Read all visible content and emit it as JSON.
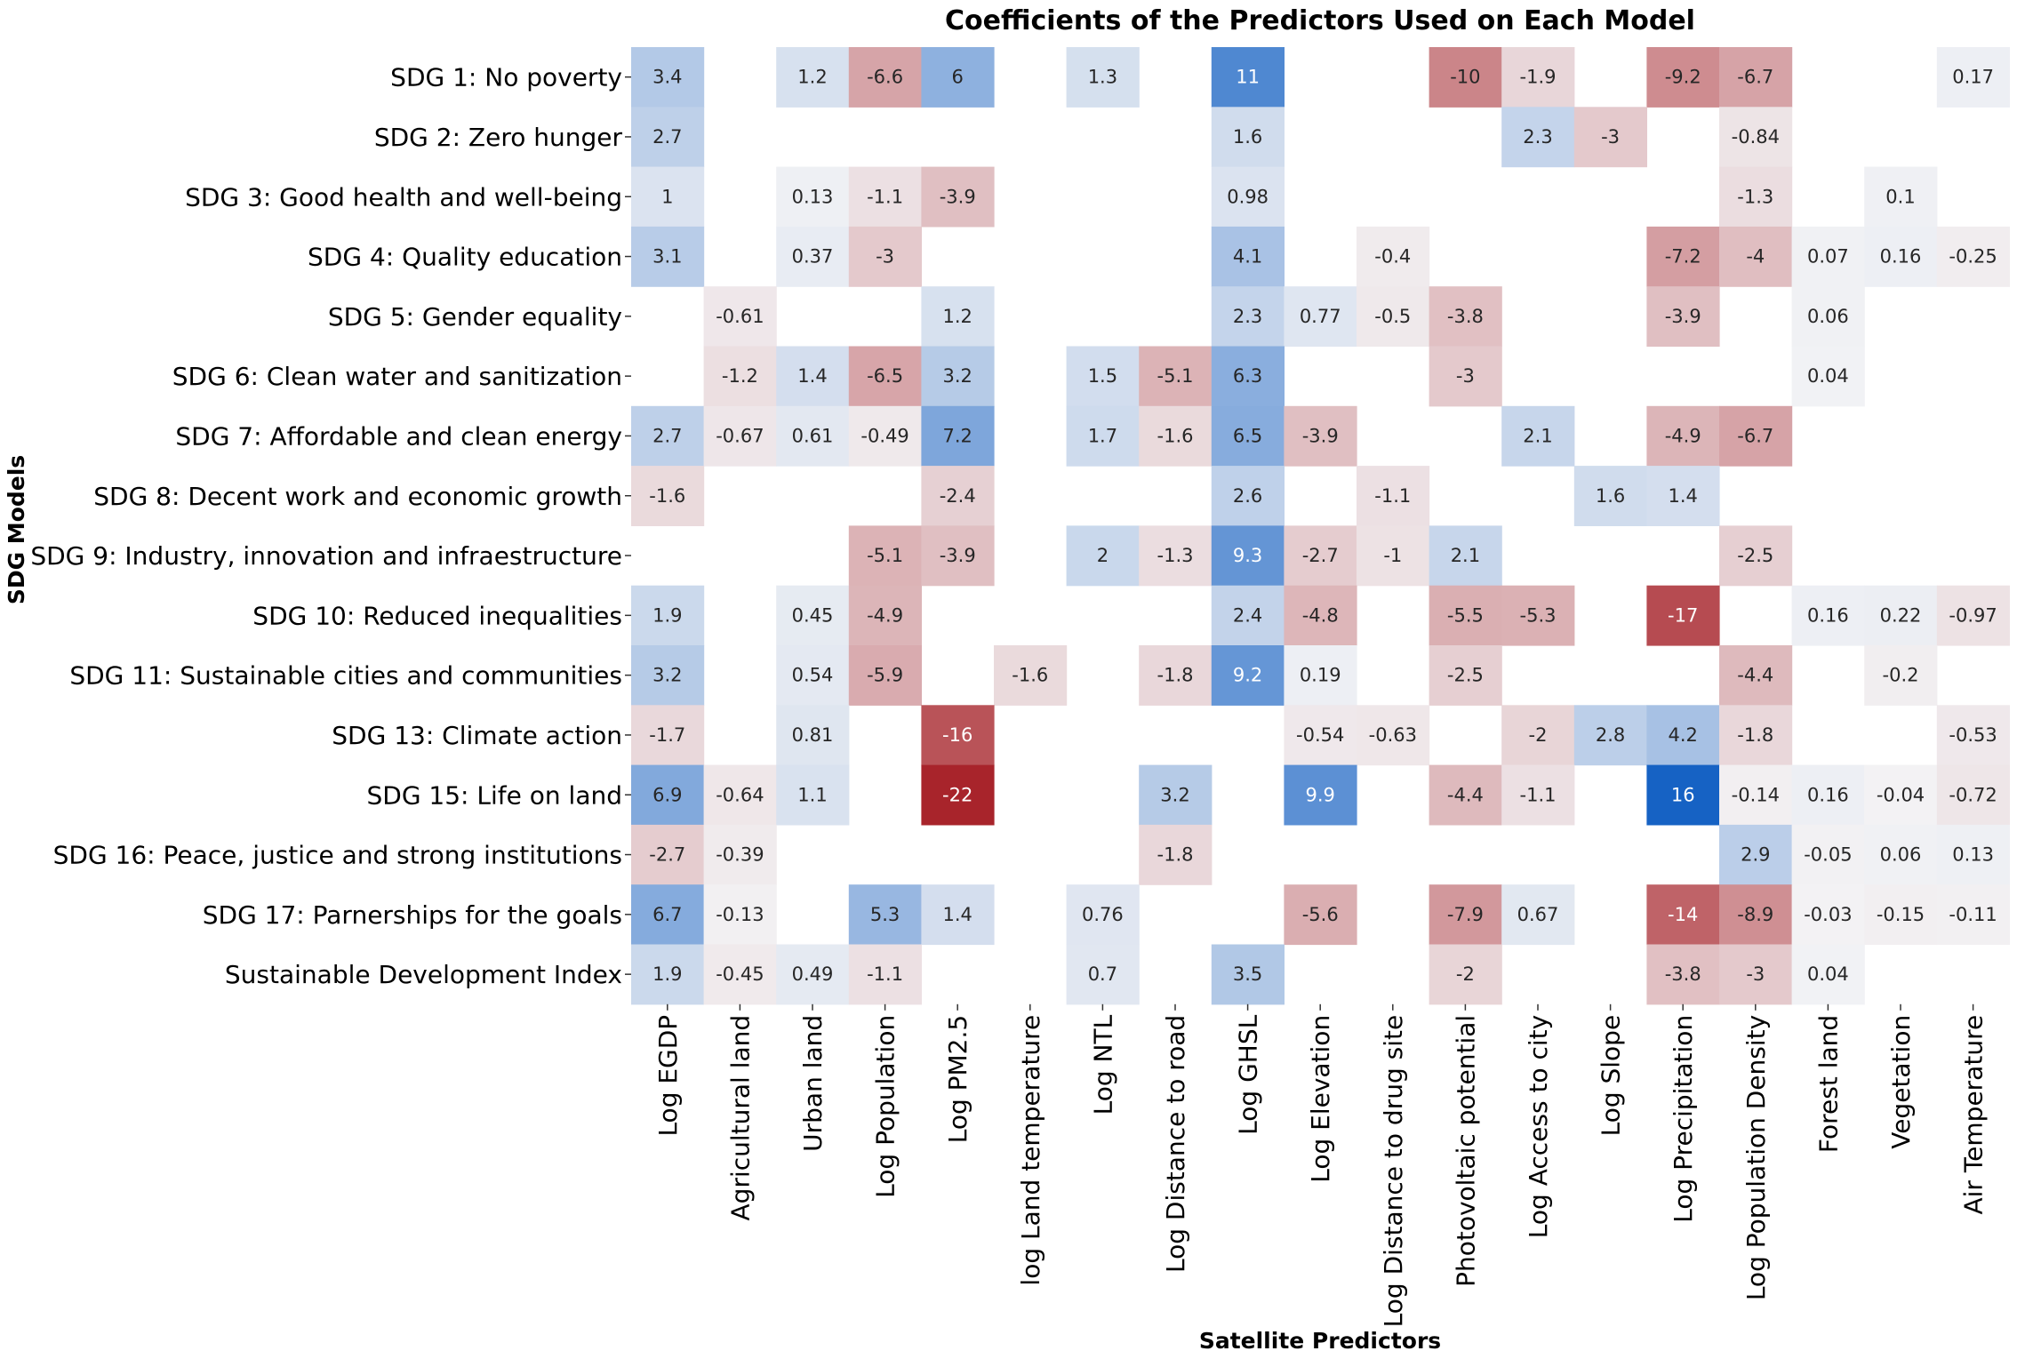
{
  "chart_data": {
    "type": "heatmap",
    "title": "Coefficients of the Predictors Used on Each Model",
    "xlabel": "Satellite Predictors",
    "ylabel": "SDG Models",
    "color_scale": {
      "min": -22,
      "max": 16,
      "negative": "#a8242b",
      "neutral": "#f3f3f5",
      "positive": "#1662c4"
    },
    "columns": [
      "Log EGDP",
      "Agricultural land",
      "Urban land",
      "Log Population",
      "Log PM2.5",
      "log Land temperature",
      "Log NTL",
      "Log Distance to road",
      "Log GHSL",
      "Log Elevation",
      "Log Distance to drug site",
      "Photovoltaic potential",
      "Log Access to city",
      "Log Slope",
      "Log Precipitation",
      "Log Population Density",
      "Forest land",
      "Vegetation",
      "Air Temperature"
    ],
    "rows": [
      "SDG 1: No poverty",
      "SDG 2: Zero hunger",
      "SDG 3: Good health and well-being",
      "SDG 4: Quality education",
      "SDG 5: Gender equality",
      "SDG 6: Clean water and sanitization",
      "SDG 7: Affordable and clean energy",
      "SDG 8: Decent work and economic growth",
      "SDG 9: Industry, innovation and infraestructure",
      "SDG 10: Reduced inequalities",
      "SDG 11: Sustainable cities and communities",
      "SDG 13: Climate action",
      "SDG 15: Life on land",
      "SDG 16: Peace, justice and strong institutions",
      "SDG 17: Parnerships for the goals",
      "Sustainable Development Index"
    ],
    "values": [
      [
        3.4,
        null,
        1.2,
        -6.6,
        6,
        null,
        1.3,
        null,
        11,
        null,
        null,
        -10,
        -1.9,
        null,
        -9.2,
        -6.7,
        null,
        null,
        0.17
      ],
      [
        2.7,
        null,
        null,
        null,
        null,
        null,
        null,
        null,
        1.6,
        null,
        null,
        null,
        2.3,
        -3,
        null,
        -0.84,
        null,
        null,
        null
      ],
      [
        1,
        null,
        0.13,
        -1.1,
        -3.9,
        null,
        null,
        null,
        0.98,
        null,
        null,
        null,
        null,
        null,
        null,
        -1.3,
        null,
        0.1,
        null
      ],
      [
        3.1,
        null,
        0.37,
        -3,
        null,
        null,
        null,
        null,
        4.1,
        null,
        -0.4,
        null,
        null,
        null,
        -7.2,
        -4,
        0.07,
        0.16,
        -0.25
      ],
      [
        null,
        -0.61,
        null,
        null,
        1.2,
        null,
        null,
        null,
        2.3,
        0.77,
        -0.5,
        -3.8,
        null,
        null,
        -3.9,
        null,
        0.06,
        null,
        null
      ],
      [
        null,
        -1.2,
        1.4,
        -6.5,
        3.2,
        null,
        1.5,
        -5.1,
        6.3,
        null,
        null,
        -3,
        null,
        null,
        null,
        null,
        0.04,
        null,
        null
      ],
      [
        2.7,
        -0.67,
        0.61,
        -0.49,
        7.2,
        null,
        1.7,
        -1.6,
        6.5,
        -3.9,
        null,
        null,
        2.1,
        null,
        -4.9,
        -6.7,
        null,
        null,
        null
      ],
      [
        -1.6,
        null,
        null,
        null,
        -2.4,
        null,
        null,
        null,
        2.6,
        null,
        -1.1,
        null,
        null,
        1.6,
        1.4,
        null,
        null,
        null,
        null
      ],
      [
        null,
        null,
        null,
        -5.1,
        -3.9,
        null,
        2,
        -1.3,
        9.3,
        -2.7,
        -1,
        2.1,
        null,
        null,
        null,
        -2.5,
        null,
        null,
        null
      ],
      [
        1.9,
        null,
        0.45,
        -4.9,
        null,
        null,
        null,
        null,
        2.4,
        -4.8,
        null,
        -5.5,
        -5.3,
        null,
        -17,
        null,
        0.16,
        0.22,
        -0.97
      ],
      [
        3.2,
        null,
        0.54,
        -5.9,
        null,
        -1.6,
        null,
        -1.8,
        9.2,
        0.19,
        null,
        -2.5,
        null,
        null,
        null,
        -4.4,
        null,
        -0.2,
        null
      ],
      [
        -1.7,
        null,
        0.81,
        null,
        -16,
        null,
        null,
        null,
        null,
        -0.54,
        -0.63,
        null,
        -2,
        2.8,
        4.2,
        -1.8,
        null,
        null,
        -0.53
      ],
      [
        6.9,
        -0.64,
        1.1,
        null,
        -22,
        null,
        null,
        3.2,
        null,
        9.9,
        null,
        -4.4,
        -1.1,
        null,
        16,
        -0.14,
        0.16,
        -0.04,
        -0.72
      ],
      [
        -2.7,
        -0.39,
        null,
        null,
        null,
        null,
        null,
        -1.8,
        null,
        null,
        null,
        null,
        null,
        null,
        null,
        2.9,
        -0.05,
        0.06,
        0.13
      ],
      [
        6.7,
        -0.13,
        null,
        5.3,
        1.4,
        null,
        0.76,
        null,
        null,
        -5.6,
        null,
        -7.9,
        0.67,
        null,
        -14,
        -8.9,
        -0.03,
        -0.15,
        -0.11
      ],
      [
        1.9,
        -0.45,
        0.49,
        -1.1,
        null,
        null,
        0.7,
        null,
        3.5,
        null,
        null,
        -2,
        null,
        null,
        -3.8,
        -3,
        0.04,
        null,
        null
      ]
    ]
  }
}
